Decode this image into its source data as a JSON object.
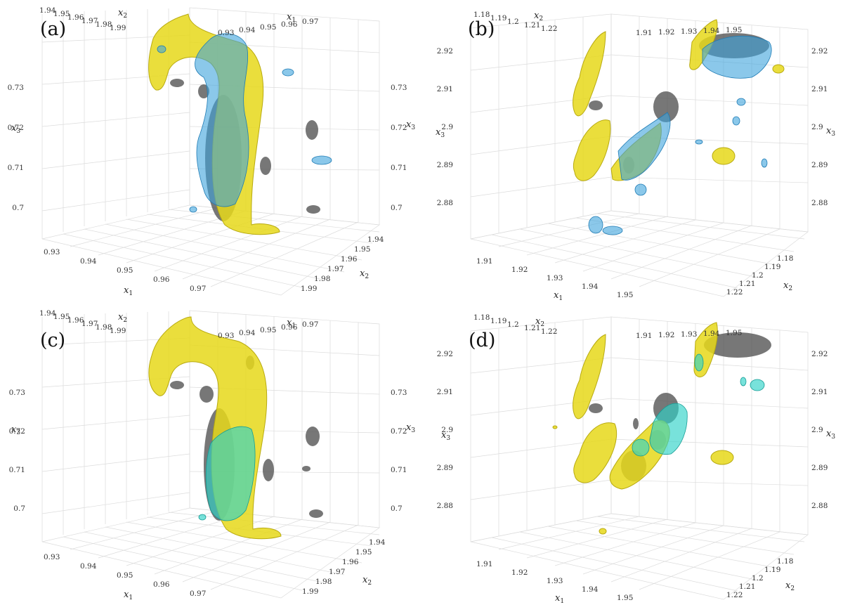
{
  "panels": [
    {
      "id": "a",
      "label": "(a)",
      "x1_ticks": [
        "0.93",
        "0.94",
        "0.95",
        "0.96",
        "0.97"
      ],
      "x2_ticks": [
        "1.94",
        "1.95",
        "1.96",
        "1.97",
        "1.98",
        "1.99"
      ],
      "x3_ticks": [
        "0.73",
        "0.72",
        "0.71",
        "0.7"
      ],
      "axis_labels": {
        "x1": "x",
        "x2": "x",
        "x3": "x"
      },
      "surfaces": [
        "yellow",
        "blue",
        "gray"
      ]
    },
    {
      "id": "b",
      "label": "(b)",
      "x1_ticks": [
        "1.91",
        "1.92",
        "1.93",
        "1.94",
        "1.95"
      ],
      "x2_ticks": [
        "1.18",
        "1.19",
        "1.2",
        "1.21",
        "1.22"
      ],
      "x3_ticks": [
        "2.92",
        "2.91",
        "2.9",
        "2.89",
        "2.88"
      ],
      "axis_labels": {
        "x1": "x",
        "x2": "x",
        "x3": "x"
      },
      "surfaces": [
        "yellow",
        "blue",
        "gray"
      ]
    },
    {
      "id": "c",
      "label": "(c)",
      "x1_ticks": [
        "0.93",
        "0.94",
        "0.95",
        "0.96",
        "0.97"
      ],
      "x2_ticks": [
        "1.94",
        "1.95",
        "1.96",
        "1.97",
        "1.98",
        "1.99"
      ],
      "x3_ticks": [
        "0.73",
        "0.72",
        "0.71",
        "0.7"
      ],
      "axis_labels": {
        "x1": "x",
        "x2": "x",
        "x3": "x"
      },
      "surfaces": [
        "yellow",
        "cyan",
        "gray"
      ]
    },
    {
      "id": "d",
      "label": "(d)",
      "x1_ticks": [
        "1.91",
        "1.92",
        "1.93",
        "1.94",
        "1.95"
      ],
      "x2_ticks": [
        "1.18",
        "1.19",
        "1.2",
        "1.21",
        "1.22"
      ],
      "x3_ticks": [
        "2.92",
        "2.91",
        "2.9",
        "2.89",
        "2.88"
      ],
      "axis_labels": {
        "x1": "x",
        "x2": "x",
        "x3": "x"
      },
      "surfaces": [
        "yellow",
        "cyan",
        "gray"
      ]
    }
  ],
  "colors": {
    "yellow": "#e6d81a",
    "blue": "#3ea4dc",
    "cyan": "#2fd2c8",
    "gray": "#555555",
    "grid": "#d8d8d8"
  }
}
